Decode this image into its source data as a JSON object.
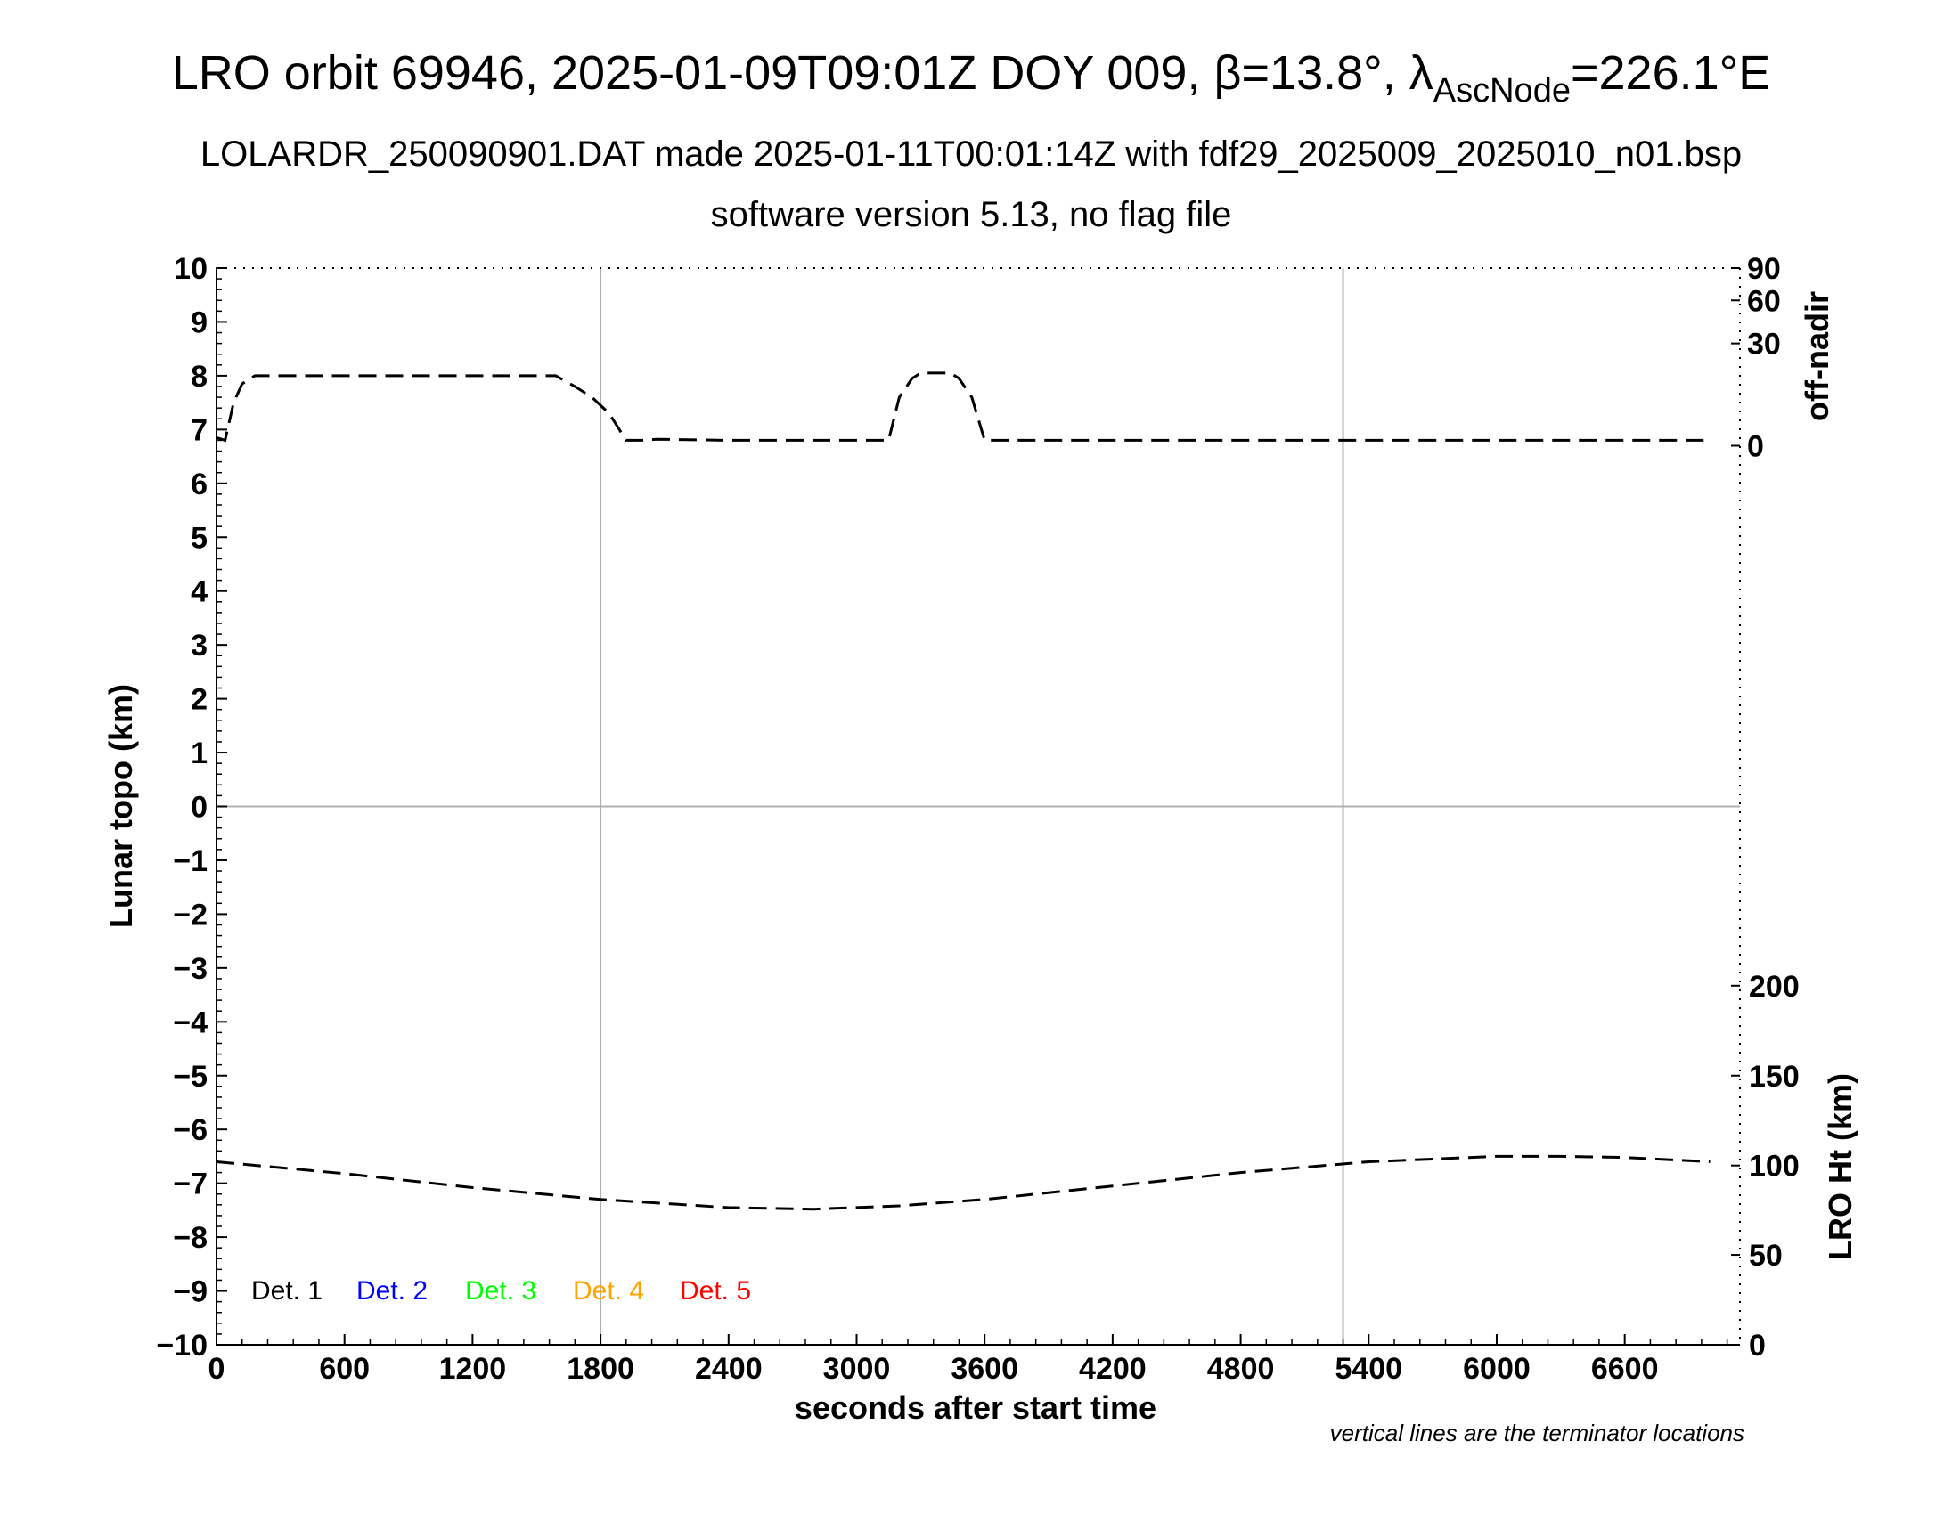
{
  "title": {
    "main": "LRO orbit 69946, 2025-01-09T09:01Z DOY 009, β=13.8°, λ",
    "sub": "AscNode",
    "tail": "=226.1°E",
    "line2": "LOLARDR_250090901.DAT made 2025-01-11T00:01:14Z with fdf29_2025009_2025010_n01.bsp",
    "line3": "software version 5.13, no flag file"
  },
  "note": "vertical lines are the terminator locations",
  "chart_data": {
    "type": "line",
    "xlabel": "seconds after start time",
    "ylabel": "Lunar topo (km)",
    "y2label_top": "off-nadir",
    "y2label_bottom": "LRO Ht (km)",
    "xlim": [
      0,
      7140
    ],
    "ylim": [
      -10,
      10
    ],
    "x_ticks": [
      0,
      600,
      1200,
      1800,
      2400,
      3000,
      3600,
      4200,
      4800,
      5400,
      6000,
      6600
    ],
    "y_ticks": [
      10,
      9,
      8,
      7,
      6,
      5,
      4,
      3,
      2,
      1,
      0,
      -1,
      -2,
      -3,
      -4,
      -5,
      -6,
      -7,
      -8,
      -9,
      -10
    ],
    "y_tick_labels": [
      "10",
      "9",
      "8",
      "7",
      "6",
      "5",
      "4",
      "3",
      "2",
      "1",
      "0",
      "−1",
      "−2",
      "−3",
      "−4",
      "−5",
      "−6",
      "−7",
      "−8",
      "−9",
      "−10"
    ],
    "offnadir_ticks": [
      {
        "label": "90",
        "y": 10
      },
      {
        "label": "60",
        "y": 9.4
      },
      {
        "label": "30",
        "y": 8.6
      },
      {
        "label": "0",
        "y": 6.7
      }
    ],
    "lroht_ticks": [
      {
        "label": "200",
        "y": -3.33
      },
      {
        "label": "150",
        "y": -5
      },
      {
        "label": "100",
        "y": -6.67
      },
      {
        "label": "50",
        "y": -8.33
      },
      {
        "label": "0",
        "y": -10
      }
    ],
    "terminators": [
      1800,
      5280
    ],
    "grid": false,
    "legend_position": "bottom-left",
    "legend": [
      {
        "label": "Det. 1",
        "color": "#000000"
      },
      {
        "label": "Det. 2",
        "color": "#0000ff"
      },
      {
        "label": "Det. 3",
        "color": "#00ff00"
      },
      {
        "label": "Det. 4",
        "color": "#ffa500"
      },
      {
        "label": "Det. 5",
        "color": "#ff0000"
      }
    ],
    "series": [
      {
        "color": "#000000",
        "style": "dashed",
        "x": [
          0,
          40,
          80,
          120,
          180,
          400,
          800,
          1200,
          1590,
          1680,
          1760,
          1840,
          1920,
          2000,
          2060,
          2400,
          2800,
          3000,
          3150,
          3200,
          3260,
          3300,
          3440,
          3480,
          3540,
          3600,
          4000,
          5000,
          6000,
          7000
        ],
        "values": [
          6.85,
          6.8,
          7.5,
          7.85,
          8.0,
          8.0,
          8.0,
          8.0,
          8.0,
          7.8,
          7.6,
          7.3,
          6.8,
          6.8,
          6.82,
          6.8,
          6.8,
          6.8,
          6.8,
          7.6,
          7.95,
          8.05,
          8.05,
          7.95,
          7.6,
          6.8,
          6.8,
          6.8,
          6.8,
          6.8
        ]
      },
      {
        "color": "#000000",
        "style": "dashed",
        "x": [
          0,
          600,
          1200,
          1800,
          2400,
          2800,
          3200,
          3600,
          4200,
          4800,
          5400,
          6000,
          6300,
          6600,
          7000
        ],
        "values": [
          -6.6,
          -6.82,
          -7.08,
          -7.3,
          -7.45,
          -7.48,
          -7.42,
          -7.3,
          -7.05,
          -6.8,
          -6.6,
          -6.5,
          -6.5,
          -6.52,
          -6.6
        ]
      }
    ]
  }
}
